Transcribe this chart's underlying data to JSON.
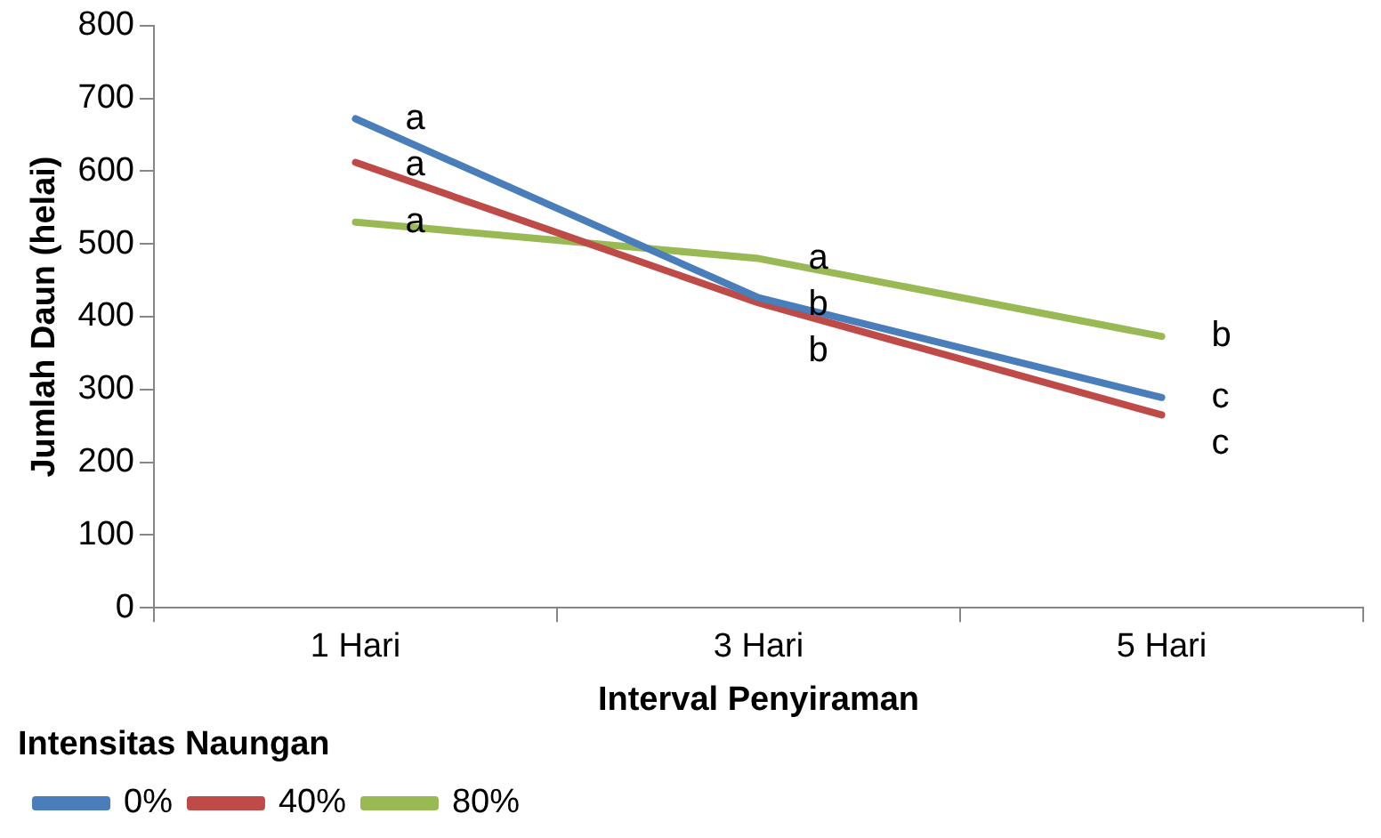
{
  "chart_data": {
    "type": "line",
    "xlabel": "Interval Penyiraman",
    "ylabel": "Jumlah Daun (helai)",
    "legend_title": "Intensitas Naungan",
    "categories": [
      "1 Hari",
      "3 Hari",
      "5 Hari"
    ],
    "series": [
      {
        "name": "0%",
        "color": "#4a7ebb",
        "values": [
          672,
          426,
          289
        ]
      },
      {
        "name": "40%",
        "color": "#be4b48",
        "values": [
          612,
          419,
          265
        ]
      },
      {
        "name": "80%",
        "color": "#98b954",
        "values": [
          530,
          480,
          373
        ]
      }
    ],
    "ylim": [
      0,
      800
    ],
    "yticks": [
      0,
      100,
      200,
      300,
      400,
      500,
      600,
      700,
      800
    ],
    "grid": false,
    "legend": "bottom",
    "marker": "none",
    "line_style": "solid",
    "annotations": [
      {
        "text": "a",
        "x": "1 Hari",
        "y": 672
      },
      {
        "text": "a",
        "x": "1 Hari",
        "y": 612
      },
      {
        "text": "a",
        "x": "1 Hari",
        "y": 530
      },
      {
        "text": "a",
        "x": "3 Hari",
        "y": 480
      },
      {
        "text": "b",
        "x": "3 Hari",
        "y": 426
      },
      {
        "text": "b",
        "x": "3 Hari",
        "y": 419
      },
      {
        "text": "b",
        "x": "5 Hari",
        "y": 373
      },
      {
        "text": "c",
        "x": "5 Hari",
        "y": 289
      },
      {
        "text": "c",
        "x": "5 Hari",
        "y": 265
      }
    ]
  }
}
